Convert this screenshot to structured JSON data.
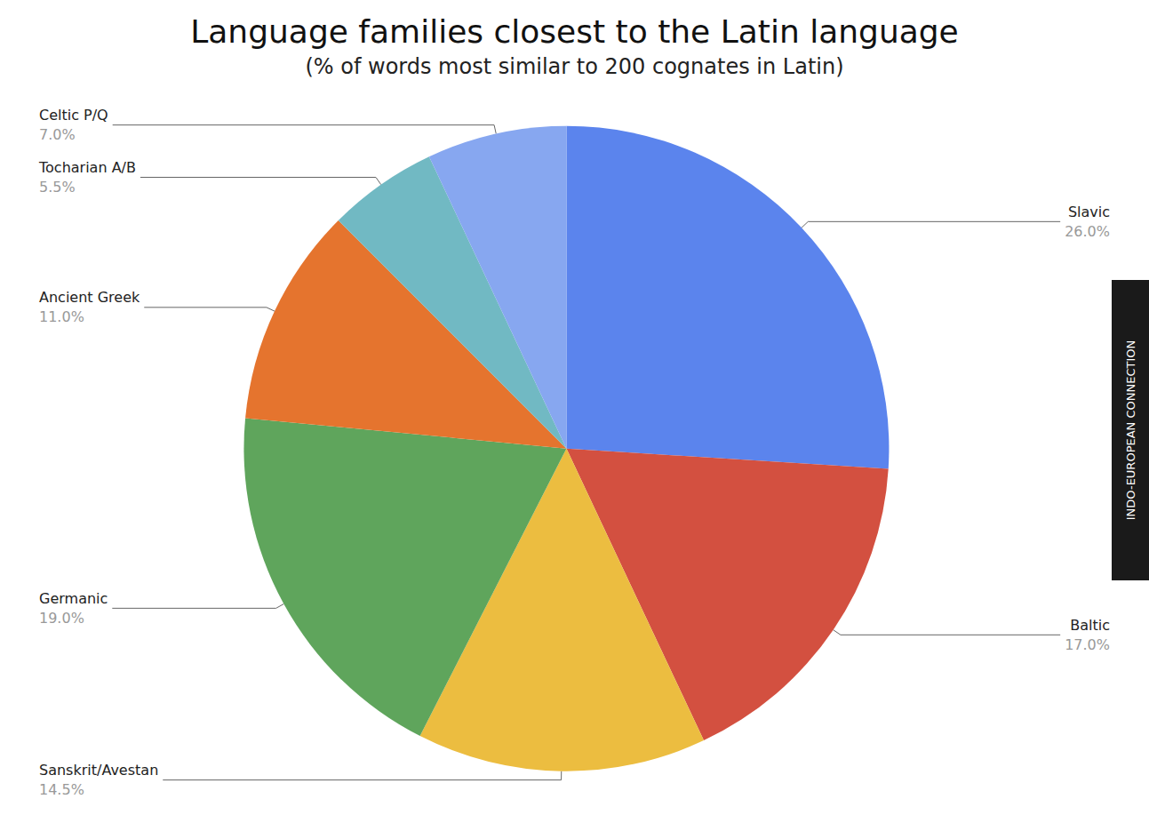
{
  "chart_data": {
    "type": "pie",
    "title": "Language families closest to the Latin language",
    "subtitle": "(% of words most similar to 200 cognates in Latin)",
    "categories": [
      "Slavic",
      "Baltic",
      "Sanskrit/Avestan",
      "Germanic",
      "Ancient Greek",
      "Tocharian A/B",
      "Celtic P/Q"
    ],
    "values": [
      26.0,
      17.0,
      14.5,
      19.0,
      11.0,
      5.5,
      7.0
    ],
    "value_labels": [
      "26.0%",
      "17.0%",
      "14.5%",
      "19.0%",
      "11.0%",
      "5.5%",
      "7.0%"
    ],
    "colors": [
      "#5b84ed",
      "#d35040",
      "#ecbd40",
      "#5fa55c",
      "#e5742e",
      "#71b9c3",
      "#87a7f0"
    ],
    "data_labels": true,
    "legend": false,
    "watermark": "INDO-EUROPEAN CONNECTION"
  }
}
